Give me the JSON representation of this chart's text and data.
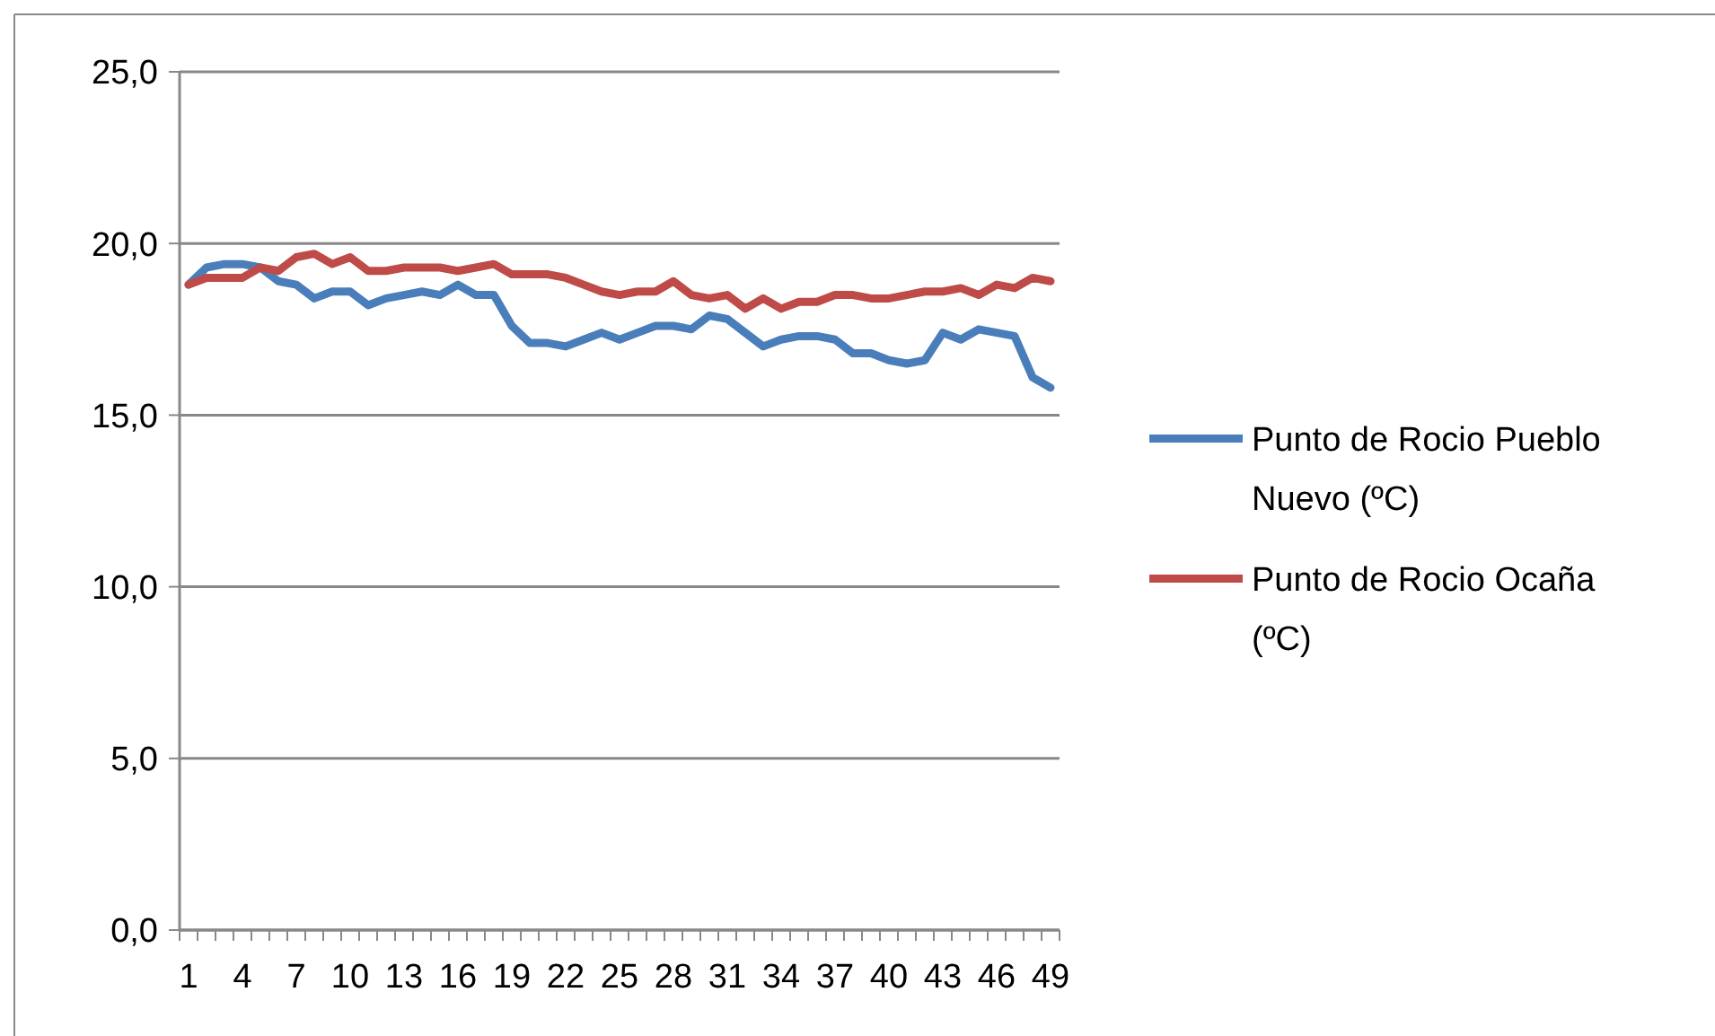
{
  "chart_data": {
    "type": "line",
    "categories": [
      "1",
      null,
      null,
      "4",
      null,
      null,
      "7",
      null,
      null,
      "10",
      null,
      null,
      "13",
      null,
      null,
      "16",
      null,
      null,
      "19",
      null,
      null,
      "22",
      null,
      null,
      "25",
      null,
      null,
      "28",
      null,
      null,
      "31",
      null,
      null,
      "34",
      null,
      null,
      "37",
      null,
      null,
      "40",
      null,
      null,
      "43",
      null,
      null,
      "46",
      null,
      null,
      "49"
    ],
    "series": [
      {
        "name": "Punto de Rocio Pueblo Nuevo (ºC)",
        "color": "#4a7ebb",
        "values": [
          18.8,
          19.3,
          19.4,
          19.4,
          19.3,
          18.9,
          18.8,
          18.4,
          18.6,
          18.6,
          18.2,
          18.4,
          18.5,
          18.6,
          18.5,
          18.8,
          18.5,
          18.5,
          17.6,
          17.1,
          17.1,
          17.0,
          17.2,
          17.4,
          17.2,
          17.4,
          17.6,
          17.6,
          17.5,
          17.9,
          17.8,
          17.4,
          17.0,
          17.2,
          17.3,
          17.3,
          17.2,
          16.8,
          16.8,
          16.6,
          16.5,
          16.6,
          17.4,
          17.2,
          17.5,
          17.4,
          17.3,
          16.1,
          15.8
        ]
      },
      {
        "name": "Punto de Rocio Ocaña (ºC)",
        "color": "#be4b48",
        "values": [
          18.8,
          19.0,
          19.0,
          19.0,
          19.3,
          19.2,
          19.6,
          19.7,
          19.4,
          19.6,
          19.2,
          19.2,
          19.3,
          19.3,
          19.3,
          19.2,
          19.3,
          19.4,
          19.1,
          19.1,
          19.1,
          19.0,
          18.8,
          18.6,
          18.5,
          18.6,
          18.6,
          18.9,
          18.5,
          18.4,
          18.5,
          18.1,
          18.4,
          18.1,
          18.3,
          18.3,
          18.5,
          18.5,
          18.4,
          18.4,
          18.5,
          18.6,
          18.6,
          18.7,
          18.5,
          18.8,
          18.7,
          19.0,
          18.9
        ]
      }
    ],
    "ylim": [
      0,
      25
    ],
    "yticks": [
      {
        "value": 0,
        "label": "0,0"
      },
      {
        "value": 5,
        "label": "5,0"
      },
      {
        "value": 10,
        "label": "10,0"
      },
      {
        "value": 15,
        "label": "15,0"
      },
      {
        "value": 20,
        "label": "20,0"
      },
      {
        "value": 25,
        "label": "25,0"
      }
    ],
    "grid": "y",
    "legend": "right",
    "marker": "none",
    "line_style": "solid"
  }
}
